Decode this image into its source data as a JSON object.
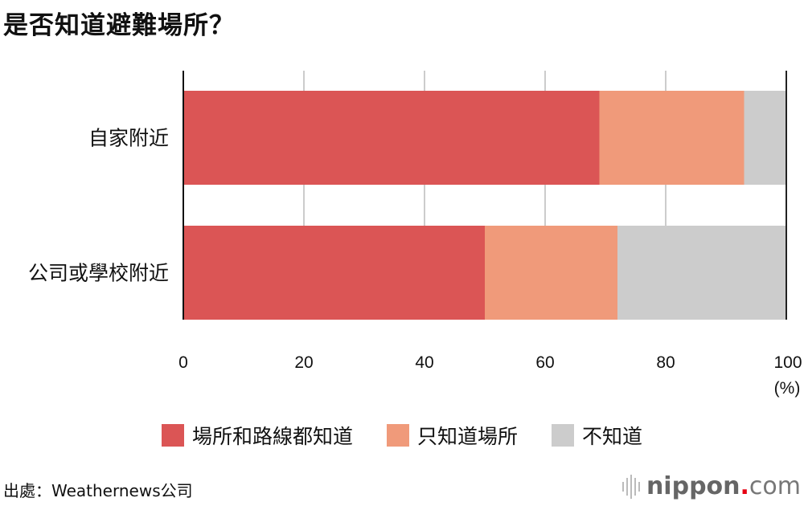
{
  "title": "是否知道避難場所？",
  "chart_data": {
    "type": "bar",
    "orientation": "horizontal",
    "stacked": true,
    "categories": [
      "自家附近",
      "公司或學校附近"
    ],
    "series": [
      {
        "name": "場所和路線都知道",
        "values": [
          69,
          50
        ],
        "color": "#db5555"
      },
      {
        "name": "只知道場所",
        "values": [
          24,
          22
        ],
        "color": "#f09a7a"
      },
      {
        "name": "不知道",
        "values": [
          7,
          28
        ],
        "color": "#cccccc"
      }
    ],
    "xlim": [
      0,
      100
    ],
    "xticks": [
      "0",
      "20",
      "40",
      "60",
      "80",
      "100"
    ],
    "xunit": "(%)",
    "grid": true,
    "legend": "bottom"
  },
  "source": "出處：Weathernews公司",
  "logo": {
    "main": "nippon",
    "dot": ".",
    "suffix": "com"
  }
}
